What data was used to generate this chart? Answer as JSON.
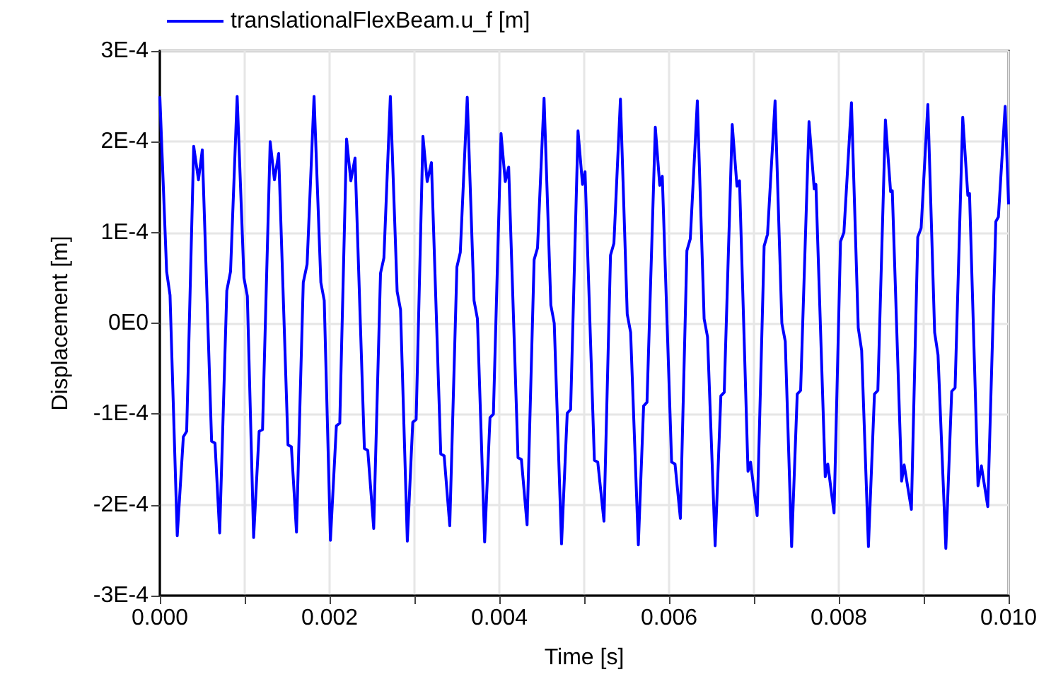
{
  "chart_data": {
    "type": "line",
    "xlabel": "Time [s]",
    "ylabel": "Displacement [m]",
    "xlim": [
      0,
      0.01
    ],
    "ylim": [
      -0.0003,
      0.0003
    ],
    "xticks": [
      {
        "value": 0,
        "label": "0.000"
      },
      {
        "value": 0.001,
        "label": null
      },
      {
        "value": 0.002,
        "label": "0.002"
      },
      {
        "value": 0.003,
        "label": null
      },
      {
        "value": 0.004,
        "label": "0.004"
      },
      {
        "value": 0.005,
        "label": null
      },
      {
        "value": 0.006,
        "label": "0.006"
      },
      {
        "value": 0.007,
        "label": null
      },
      {
        "value": 0.008,
        "label": "0.008"
      },
      {
        "value": 0.009,
        "label": null
      },
      {
        "value": 0.01,
        "label": "0.010"
      }
    ],
    "yticks": [
      {
        "value": -0.0003,
        "label": "-3E-4"
      },
      {
        "value": -0.0002,
        "label": "-2E-4"
      },
      {
        "value": -0.0001,
        "label": "-1E-4"
      },
      {
        "value": 0,
        "label": "0E0"
      },
      {
        "value": 0.0001,
        "label": "1E-4"
      },
      {
        "value": 0.0002,
        "label": "2E-4"
      },
      {
        "value": 0.0003,
        "label": "3E-4"
      }
    ],
    "grid": true,
    "legend": "top left",
    "marker": "none",
    "line_style": "solid",
    "x": [
      0,
      8e-05,
      0.00012,
      0.000205,
      0.000277,
      0.000316,
      0.000399,
      0.000455,
      0.0005,
      0.00061,
      0.00065,
      0.000705,
      0.000789,
      0.000833,
      0.000911,
      0.000991,
      0.001031,
      0.001105,
      0.00117,
      0.00121,
      0.0013,
      0.00135,
      0.0014,
      0.00151,
      0.00155,
      0.00161,
      0.00169,
      0.001735,
      0.001817,
      0.001897,
      0.001937,
      0.00201,
      0.00208,
      0.00212,
      0.0022,
      0.00225,
      0.0023,
      0.00241,
      0.00245,
      0.00252,
      0.0026,
      0.00264,
      0.002716,
      0.002796,
      0.002836,
      0.002916,
      0.00298,
      0.00302,
      0.0031,
      0.00315,
      0.0032,
      0.00331,
      0.00335,
      0.003416,
      0.0035,
      0.00354,
      0.003622,
      0.003702,
      0.003742,
      0.003827,
      0.00389,
      0.00393,
      0.00402,
      0.00407,
      0.00411,
      0.00422,
      0.00426,
      0.004327,
      0.00441,
      0.00445,
      0.004527,
      0.004607,
      0.004647,
      0.004733,
      0.0048,
      0.00484,
      0.004927,
      0.00498,
      0.00501,
      0.00512,
      0.00516,
      0.005233,
      0.00531,
      0.00535,
      0.005427,
      0.005507,
      0.005547,
      0.005638,
      0.0057,
      0.00574,
      0.005838,
      0.00589,
      0.00592,
      0.00603,
      0.00607,
      0.006133,
      0.00621,
      0.00625,
      0.006333,
      0.006413,
      0.006453,
      0.006543,
      0.00661,
      0.00665,
      0.006744,
      0.0068,
      0.00683,
      0.00693,
      0.00696,
      0.007038,
      0.00712,
      0.00716,
      0.007249,
      0.007329,
      0.007369,
      0.007444,
      0.00751,
      0.00755,
      0.007649,
      0.00771,
      0.00773,
      0.00784,
      0.00787,
      0.007944,
      0.00802,
      0.00806,
      0.008149,
      0.008229,
      0.008269,
      0.008349,
      0.00842,
      0.00846,
      0.008549,
      0.00861,
      0.00863,
      0.00874,
      0.00877,
      0.008855,
      0.00893,
      0.00897,
      0.009049,
      0.009129,
      0.009169,
      0.009261,
      0.00933,
      0.00937,
      0.00946,
      0.00952,
      0.00954,
      0.00964,
      0.00968,
      0.009755,
      0.00985,
      0.00988,
      0.00996,
      0.01
    ],
    "series": [
      {
        "name": "translationalFlexBeam.u_f [m]",
        "color": "#0000ff",
        "values": [
          0.00025,
          5.7e-05,
          3.1e-05,
          -0.000234,
          -0.000125,
          -0.000119,
          0.000195,
          0.000158,
          0.000191,
          -0.00013,
          -0.000132,
          -0.000231,
          3.6e-05,
          5.7e-05,
          0.00025,
          5e-05,
          3e-05,
          -0.000236,
          -0.000119,
          -0.000117,
          0.0002,
          0.000158,
          0.000187,
          -0.000134,
          -0.000136,
          -0.00023,
          4.5e-05,
          6.5e-05,
          0.00025,
          4.5e-05,
          2.5e-05,
          -0.000239,
          -0.000113,
          -0.00011,
          0.000203,
          0.000157,
          0.000182,
          -0.000138,
          -0.00014,
          -0.000226,
          5.5e-05,
          7.2e-05,
          0.00025,
          3.5e-05,
          1.5e-05,
          -0.00024,
          -0.000109,
          -0.000106,
          0.000206,
          0.000156,
          0.000177,
          -0.000144,
          -0.000146,
          -0.000223,
          6.2e-05,
          7.8e-05,
          0.000249,
          2.5e-05,
          5e-06,
          -0.000241,
          -0.000104,
          -0.0001,
          0.000209,
          0.000156,
          0.000172,
          -0.000148,
          -0.00015,
          -0.000222,
          7e-05,
          8.3e-05,
          0.000248,
          2e-05,
          0,
          -0.000243,
          -9.9e-05,
          -9.5e-05,
          0.000212,
          0.000153,
          0.000167,
          -0.000151,
          -0.000153,
          -0.000218,
          7.5e-05,
          8.8e-05,
          0.000247,
          1e-05,
          -1e-05,
          -0.000244,
          -9.1e-05,
          -8.7e-05,
          0.000216,
          0.000152,
          0.000162,
          -0.000153,
          -0.000155,
          -0.000215,
          8e-05,
          9.3e-05,
          0.000245,
          5e-06,
          -1.5e-05,
          -0.000245,
          -8e-05,
          -7.6e-05,
          0.000219,
          0.000151,
          0.000157,
          -0.000163,
          -0.000153,
          -0.000212,
          8.5e-05,
          9.8e-05,
          0.000245,
          0,
          -2e-05,
          -0.000246,
          -7.8e-05,
          -7.4e-05,
          0.000222,
          0.000148,
          0.000153,
          -0.000169,
          -0.000155,
          -0.000209,
          9e-05,
          0.0001,
          0.000243,
          -5e-06,
          -3e-05,
          -0.000246,
          -7.8e-05,
          -7.4e-05,
          0.000224,
          0.000145,
          0.000146,
          -0.000174,
          -0.000156,
          -0.000205,
          9.5e-05,
          0.000105,
          0.000241,
          -1e-05,
          -3.5e-05,
          -0.000248,
          -7.5e-05,
          -7.1e-05,
          0.000227,
          0.000141,
          0.000143,
          -0.000179,
          -0.000157,
          -0.000202,
          0.000112,
          0.000117,
          0.000239,
          0.000131
        ]
      }
    ]
  }
}
